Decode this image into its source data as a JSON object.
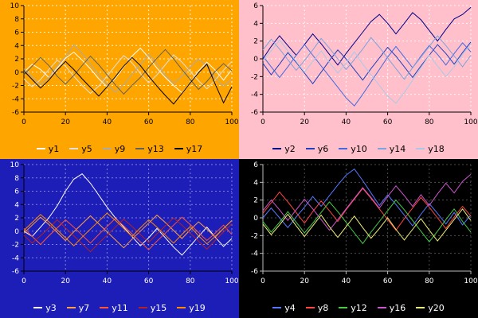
{
  "chart_data": [
    {
      "type": "line",
      "position": "top-left",
      "bg": "#ffa500",
      "text_color": "#000000",
      "axis_color": "#000000",
      "grid_color": "rgba(255,255,255,0.85)",
      "ylim": [
        -6,
        10
      ],
      "xlim": [
        0,
        100
      ],
      "yticks": [
        10,
        8,
        6,
        4,
        2,
        0,
        -2,
        -4,
        -6
      ],
      "xticks": [
        0,
        20,
        40,
        60,
        80,
        100
      ],
      "x": [
        0,
        4,
        8,
        12,
        16,
        20,
        24,
        28,
        32,
        36,
        40,
        44,
        48,
        52,
        56,
        60,
        64,
        68,
        72,
        76,
        80,
        84,
        88,
        92,
        96,
        100
      ],
      "series": [
        {
          "name": "y1",
          "color": "#ffffff",
          "values": [
            0,
            1.2,
            0.4,
            -0.8,
            0.6,
            2.1,
            3.0,
            1.8,
            0.5,
            -1.0,
            -2.2,
            -0.9,
            0.8,
            2.4,
            3.6,
            2.2,
            0.6,
            -0.8,
            -2.0,
            -3.1,
            -1.6,
            0.2,
            1.5,
            0.3,
            -1.2,
            0.4
          ]
        },
        {
          "name": "y5",
          "color": "#e0e0e0",
          "values": [
            -1.0,
            -2.2,
            -1.1,
            0.4,
            1.8,
            0.9,
            -0.6,
            -2.0,
            -3.2,
            -2.1,
            -0.6,
            1.0,
            2.5,
            1.4,
            -0.2,
            -1.6,
            -0.4,
            1.1,
            2.6,
            1.5,
            0.1,
            -1.3,
            -2.5,
            -1.2,
            0.3,
            1.6
          ]
        },
        {
          "name": "y9",
          "color": "#aaaaaa",
          "values": [
            0.5,
            -0.7,
            -1.9,
            -0.8,
            0.9,
            2.3,
            4.1,
            2.8,
            1.2,
            -0.4,
            -1.8,
            -3.0,
            -1.9,
            -0.3,
            1.1,
            2.7,
            1.3,
            -0.5,
            -1.7,
            -0.6,
            0.8,
            2.0,
            0.9,
            -0.9,
            -2.1,
            -1.0
          ]
        },
        {
          "name": "y13",
          "color": "#606060",
          "values": [
            -0.4,
            0.9,
            2.2,
            1.0,
            -0.6,
            -1.8,
            -0.5,
            1.0,
            2.4,
            1.1,
            -0.4,
            -1.9,
            -3.3,
            -2.0,
            -0.8,
            0.7,
            2.1,
            3.4,
            2.0,
            0.4,
            -1.1,
            -2.6,
            -1.4,
            0.1,
            1.3,
            0.2
          ]
        },
        {
          "name": "y17",
          "color": "#000000",
          "values": [
            0.2,
            -1.1,
            -2.4,
            -1.2,
            0.3,
            1.6,
            0.4,
            -1.0,
            -2.3,
            -3.6,
            -2.2,
            -0.7,
            0.9,
            2.2,
            1.0,
            -0.6,
            -2.1,
            -3.5,
            -4.8,
            -3.2,
            -1.6,
            -0.1,
            1.2,
            -1.8,
            -4.6,
            -2.2
          ]
        }
      ]
    },
    {
      "type": "line",
      "position": "top-right",
      "bg": "#ffc0cb",
      "text_color": "#000000",
      "axis_color": "#000000",
      "grid_color": "rgba(255,255,255,0.9)",
      "ylim": [
        -6,
        6
      ],
      "xlim": [
        0,
        100
      ],
      "yticks": [
        6,
        4,
        2,
        0,
        -2,
        -4,
        -6
      ],
      "xticks": [
        0,
        20,
        40,
        60,
        80,
        100
      ],
      "x": [
        0,
        4,
        8,
        12,
        16,
        20,
        24,
        28,
        32,
        36,
        40,
        44,
        48,
        52,
        56,
        60,
        64,
        68,
        72,
        76,
        80,
        84,
        88,
        92,
        96,
        100
      ],
      "series": [
        {
          "name": "y2",
          "color": "#00008b",
          "values": [
            0,
            1.4,
            2.6,
            1.5,
            0.4,
            1.6,
            2.8,
            1.7,
            0.5,
            -0.7,
            0.6,
            1.8,
            3.0,
            4.2,
            5.0,
            4.0,
            2.8,
            4.0,
            5.2,
            4.4,
            3.2,
            2.0,
            3.3,
            4.5,
            5.0,
            5.8
          ]
        },
        {
          "name": "y6",
          "color": "#1f3fbf",
          "values": [
            -0.5,
            -1.8,
            -0.6,
            0.7,
            -0.4,
            -1.6,
            -2.8,
            -1.5,
            -0.2,
            1.0,
            0.0,
            -1.2,
            -2.4,
            -1.1,
            0.1,
            1.3,
            0.3,
            -0.9,
            -2.1,
            -0.8,
            0.4,
            1.6,
            0.6,
            -0.6,
            0.7,
            1.9
          ]
        },
        {
          "name": "y10",
          "color": "#4169e1",
          "values": [
            0.3,
            -0.9,
            -2.1,
            -0.9,
            0.4,
            1.6,
            0.4,
            -0.8,
            -2.0,
            -3.2,
            -4.4,
            -5.3,
            -4.0,
            -2.6,
            -1.2,
            0.2,
            1.4,
            0.2,
            -1.0,
            0.3,
            1.5,
            0.5,
            -0.7,
            0.6,
            1.8,
            0.8
          ]
        },
        {
          "name": "y14",
          "color": "#7ba3de",
          "values": [
            1.0,
            2.2,
            1.1,
            -0.1,
            -1.3,
            -0.2,
            1.0,
            2.3,
            1.2,
            0.0,
            -1.2,
            -0.1,
            1.1,
            2.4,
            1.3,
            0.1,
            -1.1,
            -2.3,
            -1.0,
            0.2,
            1.4,
            2.6,
            1.5,
            0.3,
            -0.9,
            0.4
          ]
        },
        {
          "name": "y18",
          "color": "#a9c9e8",
          "values": [
            -0.2,
            0.9,
            2.1,
            0.9,
            -0.3,
            -1.5,
            -0.3,
            0.9,
            -0.4,
            -1.6,
            -0.5,
            0.8,
            -0.6,
            -1.8,
            -3.0,
            -4.2,
            -5.0,
            -3.8,
            -2.4,
            -1.0,
            0.4,
            -0.8,
            -2.0,
            -0.9,
            0.5,
            1.7
          ]
        }
      ]
    },
    {
      "type": "line",
      "position": "bottom-left",
      "bg": "#1d1db8",
      "text_color": "#ffffff",
      "axis_color": "#000000",
      "grid_color": "rgba(255,255,255,0.45)",
      "ylim": [
        -6,
        10
      ],
      "xlim": [
        0,
        100
      ],
      "yticks": [
        10,
        8,
        6,
        4,
        2,
        0,
        -2,
        -4,
        -6
      ],
      "xticks": [
        0,
        20,
        40,
        60,
        80,
        100
      ],
      "x": [
        0,
        4,
        8,
        12,
        16,
        20,
        24,
        28,
        32,
        36,
        40,
        44,
        48,
        52,
        56,
        60,
        64,
        68,
        72,
        76,
        80,
        84,
        88,
        92,
        96,
        100
      ],
      "series": [
        {
          "name": "y3",
          "color": "#ffffff",
          "values": [
            0,
            -0.8,
            0.6,
            2.0,
            3.8,
            6.0,
            7.8,
            8.6,
            7.2,
            5.4,
            3.6,
            2.0,
            0.6,
            -0.8,
            -2.2,
            -1.0,
            0.4,
            -1.0,
            -2.4,
            -3.6,
            -2.2,
            -0.8,
            0.6,
            -0.9,
            -2.3,
            -1.1
          ]
        },
        {
          "name": "y7",
          "color": "#ffa040",
          "values": [
            -0.3,
            0.9,
            2.1,
            1.0,
            -0.2,
            -1.4,
            -0.1,
            1.1,
            2.3,
            1.1,
            -0.1,
            -1.3,
            -2.5,
            -1.2,
            0.0,
            1.2,
            2.4,
            1.3,
            0.1,
            -1.1,
            0.2,
            1.4,
            0.3,
            -0.9,
            0.4,
            1.6
          ]
        },
        {
          "name": "y11",
          "color": "#ff5533",
          "values": [
            0.4,
            -0.8,
            -2.0,
            -0.7,
            0.5,
            1.7,
            0.6,
            -0.6,
            -1.8,
            -0.5,
            0.7,
            1.9,
            0.8,
            -0.4,
            -1.6,
            -2.8,
            -1.5,
            -0.3,
            0.9,
            2.1,
            1.0,
            -0.2,
            -1.4,
            -0.3,
            0.9,
            -0.5
          ]
        },
        {
          "name": "y15",
          "color": "#b22222",
          "values": [
            -0.6,
            -1.8,
            -0.7,
            0.5,
            1.7,
            0.5,
            -0.7,
            -1.9,
            -3.1,
            -1.8,
            -0.6,
            0.6,
            1.8,
            0.7,
            -0.5,
            -1.7,
            -0.4,
            0.8,
            2.0,
            0.9,
            -0.3,
            -1.5,
            -2.7,
            -1.4,
            -0.1,
            1.1
          ]
        },
        {
          "name": "y19",
          "color": "#ff8c00",
          "values": [
            0.1,
            1.3,
            2.5,
            1.4,
            0.2,
            -1.0,
            -2.2,
            -0.9,
            0.3,
            1.5,
            2.7,
            1.6,
            0.4,
            -0.8,
            0.5,
            1.7,
            0.6,
            -0.6,
            -1.8,
            -0.5,
            0.7,
            -0.7,
            -1.9,
            -0.8,
            0.4,
            1.6
          ]
        }
      ]
    },
    {
      "type": "line",
      "position": "bottom-right",
      "bg": "#000000",
      "text_color": "#ffffff",
      "axis_color": "#bbbbbb",
      "grid_color": "rgba(255,255,255,0.3)",
      "ylim": [
        -6,
        6
      ],
      "xlim": [
        0,
        100
      ],
      "yticks": [
        6,
        4,
        2,
        0,
        -2,
        -4,
        -6
      ],
      "xticks": [
        0,
        20,
        40,
        60,
        80,
        100
      ],
      "x": [
        0,
        4,
        8,
        12,
        16,
        20,
        24,
        28,
        32,
        36,
        40,
        44,
        48,
        52,
        56,
        60,
        64,
        68,
        72,
        76,
        80,
        84,
        88,
        92,
        96,
        100
      ],
      "series": [
        {
          "name": "y4",
          "color": "#5577ff",
          "values": [
            0,
            1.1,
            0.0,
            -1.1,
            0.1,
            1.2,
            2.4,
            1.3,
            2.5,
            3.7,
            4.8,
            5.5,
            4.2,
            2.8,
            1.4,
            2.6,
            1.5,
            0.3,
            -0.9,
            0.4,
            1.6,
            0.5,
            -0.7,
            0.6,
            -0.8,
            0.3
          ]
        },
        {
          "name": "y8",
          "color": "#ff4444",
          "values": [
            0.5,
            1.7,
            2.9,
            1.8,
            0.6,
            -0.6,
            0.7,
            1.9,
            0.8,
            -0.4,
            0.9,
            2.1,
            3.3,
            2.2,
            1.0,
            -0.2,
            -1.4,
            -0.1,
            1.1,
            2.3,
            1.2,
            0.0,
            -1.2,
            0.1,
            1.3,
            0.2
          ]
        },
        {
          "name": "y12",
          "color": "#44cc44",
          "values": [
            -0.4,
            -1.6,
            -0.5,
            0.7,
            -0.5,
            -1.7,
            -0.6,
            0.6,
            1.8,
            0.7,
            -0.5,
            -1.7,
            -2.9,
            -1.6,
            -0.4,
            0.8,
            2.0,
            0.9,
            -0.3,
            -1.5,
            -2.7,
            -1.5,
            -0.2,
            1.0,
            -0.4,
            -1.6
          ]
        },
        {
          "name": "y16",
          "color": "#cc55cc",
          "values": [
            0.8,
            2.0,
            0.9,
            -0.3,
            0.9,
            2.1,
            1.0,
            -0.2,
            -1.4,
            -0.2,
            1.0,
            2.2,
            3.4,
            2.3,
            1.1,
            2.4,
            3.6,
            2.5,
            1.3,
            2.6,
            1.4,
            2.7,
            3.9,
            2.8,
            4.1,
            4.9
          ]
        },
        {
          "name": "y20",
          "color": "#eeee77",
          "values": [
            -0.7,
            -1.9,
            -0.8,
            0.4,
            -0.9,
            -2.1,
            -0.9,
            0.3,
            -1.0,
            -2.2,
            -1.0,
            0.2,
            -1.1,
            -2.3,
            -1.2,
            0.0,
            -1.3,
            -2.5,
            -1.3,
            -0.1,
            -1.4,
            -2.6,
            -1.4,
            -0.2,
            1.0,
            -0.3
          ]
        }
      ]
    }
  ]
}
